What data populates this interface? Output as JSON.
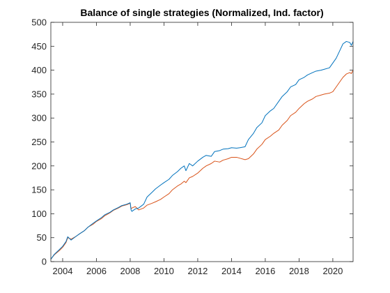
{
  "chart_data": {
    "type": "line",
    "title": "Balance of single strategies (Normalized, Ind. factor)",
    "xlabel": "",
    "ylabel": "",
    "xlim": [
      2003.3,
      2021.2
    ],
    "ylim": [
      0,
      500
    ],
    "x_ticks": [
      "2004",
      "2006",
      "2008",
      "2010",
      "2012",
      "2014",
      "2016",
      "2018",
      "2020"
    ],
    "y_ticks": [
      "0",
      "50",
      "100",
      "150",
      "200",
      "250",
      "300",
      "350",
      "400",
      "450",
      "500"
    ],
    "grid": false,
    "legend": "none",
    "series": [
      {
        "color": "#0072BD",
        "x": [
          2003.3,
          2003.5,
          2003.8,
          2004.0,
          2004.2,
          2004.3,
          2004.5,
          2004.8,
          2005.0,
          2005.3,
          2005.5,
          2005.8,
          2006.0,
          2006.3,
          2006.5,
          2006.8,
          2007.0,
          2007.3,
          2007.5,
          2007.8,
          2008.0,
          2008.05,
          2008.1,
          2008.3,
          2008.5,
          2008.8,
          2009.0,
          2009.3,
          2009.5,
          2009.8,
          2010.0,
          2010.3,
          2010.5,
          2010.8,
          2011.0,
          2011.2,
          2011.3,
          2011.5,
          2011.7,
          2012.0,
          2012.3,
          2012.5,
          2012.8,
          2013.0,
          2013.3,
          2013.5,
          2013.8,
          2014.0,
          2014.3,
          2014.5,
          2014.8,
          2015.0,
          2015.3,
          2015.5,
          2015.8,
          2016.0,
          2016.3,
          2016.5,
          2016.8,
          2017.0,
          2017.3,
          2017.5,
          2017.8,
          2018.0,
          2018.3,
          2018.5,
          2018.8,
          2019.0,
          2019.3,
          2019.5,
          2019.8,
          2020.0,
          2020.2,
          2020.4,
          2020.6,
          2020.8,
          2021.0,
          2021.1,
          2021.2
        ],
        "y": [
          5,
          15,
          25,
          32,
          42,
          52,
          45,
          53,
          58,
          65,
          72,
          80,
          85,
          92,
          98,
          103,
          108,
          113,
          117,
          120,
          123,
          108,
          105,
          110,
          112,
          120,
          135,
          145,
          152,
          160,
          165,
          172,
          180,
          188,
          195,
          200,
          190,
          205,
          200,
          210,
          218,
          222,
          220,
          230,
          232,
          235,
          236,
          238,
          237,
          238,
          240,
          255,
          268,
          280,
          290,
          305,
          315,
          320,
          335,
          345,
          355,
          365,
          370,
          380,
          385,
          390,
          395,
          398,
          400,
          402,
          405,
          415,
          425,
          440,
          455,
          460,
          458,
          452,
          460
        ]
      },
      {
        "color": "#D95319",
        "x": [
          2003.3,
          2003.5,
          2003.8,
          2004.0,
          2004.2,
          2004.3,
          2004.5,
          2004.8,
          2005.0,
          2005.3,
          2005.5,
          2005.8,
          2006.0,
          2006.3,
          2006.5,
          2006.8,
          2007.0,
          2007.3,
          2007.5,
          2007.8,
          2008.0,
          2008.05,
          2008.1,
          2008.3,
          2008.5,
          2008.8,
          2009.0,
          2009.3,
          2009.5,
          2009.8,
          2010.0,
          2010.3,
          2010.5,
          2010.8,
          2011.0,
          2011.2,
          2011.3,
          2011.5,
          2011.7,
          2012.0,
          2012.3,
          2012.5,
          2012.8,
          2013.0,
          2013.3,
          2013.5,
          2013.8,
          2014.0,
          2014.3,
          2014.5,
          2014.8,
          2015.0,
          2015.3,
          2015.5,
          2015.8,
          2016.0,
          2016.3,
          2016.5,
          2016.8,
          2017.0,
          2017.3,
          2017.5,
          2017.8,
          2018.0,
          2018.3,
          2018.5,
          2018.8,
          2019.0,
          2019.3,
          2019.5,
          2019.8,
          2020.0,
          2020.2,
          2020.4,
          2020.6,
          2020.8,
          2021.0,
          2021.1,
          2021.2
        ],
        "y": [
          5,
          14,
          23,
          30,
          40,
          50,
          47,
          53,
          58,
          65,
          72,
          78,
          84,
          90,
          96,
          102,
          107,
          112,
          116,
          119,
          122,
          110,
          112,
          115,
          108,
          112,
          118,
          122,
          125,
          130,
          135,
          142,
          150,
          158,
          162,
          168,
          165,
          175,
          178,
          185,
          195,
          200,
          205,
          210,
          208,
          212,
          215,
          218,
          218,
          216,
          213,
          215,
          225,
          235,
          245,
          255,
          262,
          268,
          275,
          285,
          295,
          305,
          312,
          320,
          330,
          335,
          340,
          345,
          348,
          350,
          352,
          355,
          365,
          375,
          385,
          392,
          395,
          393,
          400
        ]
      }
    ]
  }
}
